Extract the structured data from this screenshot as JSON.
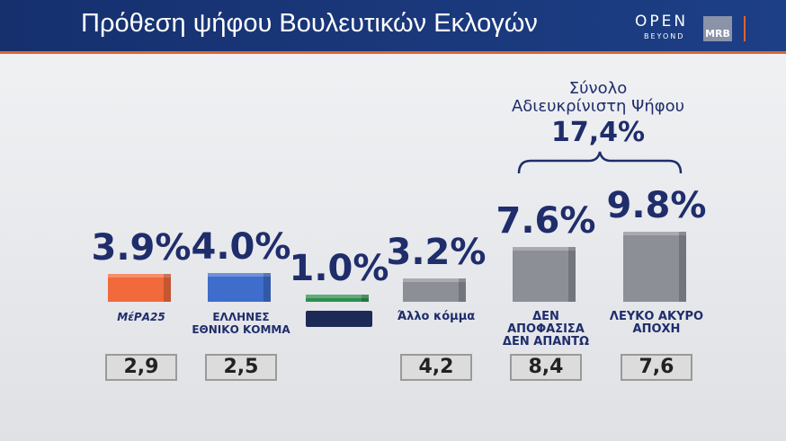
{
  "header": {
    "brand": "OPEN",
    "brand_sub": "BEYOND",
    "pollster": "MRB"
  },
  "chart_data": {
    "type": "bar",
    "title": "Πρόθεση ψήφου Βουλευτικών Εκλογών",
    "categories": [
      "ΜέΡΑ25",
      "ΕΛΛΗΝΕΣ ΕΘΝΙΚΟ ΚΟΜΜΑ",
      null,
      "Άλλο κόμμα",
      "ΔΕΝ ΑΠΟΦΑΣΙΣΑ ΔΕΝ ΑΠΑΝΤΩ",
      "ΛΕΥΚΟ ΑΚΥΡΟ ΑΠΟΧΗ"
    ],
    "values": [
      3.9,
      4.0,
      1.0,
      3.2,
      7.6,
      9.8
    ],
    "value_labels": [
      "3.9%",
      "4.0%",
      "1.0%",
      "3.2%",
      "7.6%",
      "9.8%"
    ],
    "colors": [
      "#f06a3c",
      "#3e6dcc",
      "#2f8f4e",
      "#8c8f96",
      "#8c8f96",
      "#8c8f96"
    ],
    "ylim": [
      0,
      10
    ],
    "previous": {
      "values": [
        2.9,
        2.5,
        null,
        4.2,
        8.4,
        7.6
      ],
      "value_labels": [
        "2,9",
        "2,5",
        null,
        "4,2",
        "8,4",
        "7,6"
      ]
    },
    "annotation": {
      "lines": [
        "Σύνολο",
        "Αδιευκρίνιστη Ψήφου"
      ],
      "value": 17.4,
      "label": "17,4%"
    }
  }
}
